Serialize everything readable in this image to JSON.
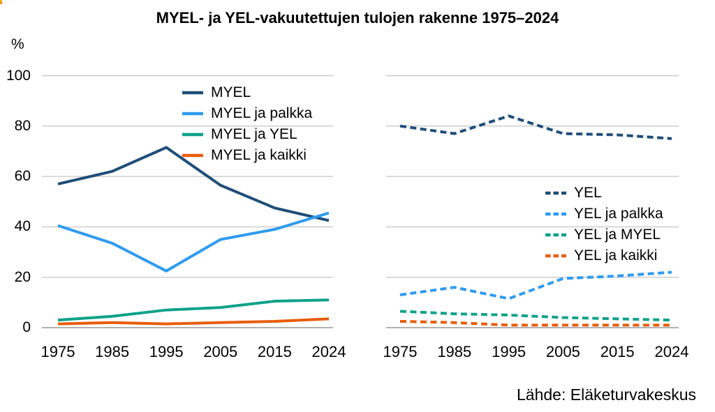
{
  "title": "MYEL- ja YEL-vakuutettujen tulojen rakenne 1975–2024",
  "source": "Lähde: Eläketurvakeskus",
  "y_axis": {
    "unit_label": "%",
    "ticks": [
      100,
      80,
      60,
      40,
      20,
      0
    ],
    "min": 0,
    "max": 100,
    "grid": true
  },
  "colors": {
    "navy": "#1f4e79",
    "blue": "#2e9bf0",
    "teal": "#0da189",
    "orange": "#e85d0c",
    "gridline": "#c9c9c9",
    "axis": "#a6a6a6",
    "text": "#000000",
    "background": "#ffffff"
  },
  "chart_data": [
    {
      "type": "line",
      "panel": "left",
      "line_style": "solid",
      "categories": [
        1975,
        1985,
        1995,
        2005,
        2015,
        2024
      ],
      "series": [
        {
          "name": "MYEL",
          "color": "#1f4e79",
          "values": [
            57,
            62,
            71.5,
            56.5,
            47.5,
            42.5
          ]
        },
        {
          "name": "MYEL ja palkka",
          "color": "#2e9bf0",
          "values": [
            40.5,
            33.5,
            22.5,
            35,
            39,
            45.5
          ]
        },
        {
          "name": "MYEL ja YEL",
          "color": "#0da189",
          "values": [
            3,
            4.5,
            7,
            8,
            10.5,
            11
          ]
        },
        {
          "name": "MYEL ja kaikki",
          "color": "#e85d0c",
          "values": [
            1.5,
            2,
            1.5,
            2,
            2.5,
            3.5
          ]
        }
      ],
      "ylim": [
        0,
        100
      ],
      "legend_position": "upper-left-inside"
    },
    {
      "type": "line",
      "panel": "right",
      "line_style": "dashed",
      "categories": [
        1975,
        1985,
        1995,
        2005,
        2015,
        2024
      ],
      "series": [
        {
          "name": "YEL",
          "color": "#1f4e79",
          "values": [
            80,
            77,
            84,
            77,
            76.5,
            75
          ]
        },
        {
          "name": "YEL ja palkka",
          "color": "#2e9bf0",
          "values": [
            13,
            16,
            11.5,
            19.5,
            20.5,
            22
          ]
        },
        {
          "name": "YEL ja MYEL",
          "color": "#0da189",
          "values": [
            6.5,
            5.5,
            5,
            4,
            3.5,
            3
          ]
        },
        {
          "name": "YEL ja kaikki",
          "color": "#e85d0c",
          "values": [
            2.5,
            2,
            1,
            1,
            1,
            1
          ]
        }
      ],
      "ylim": [
        0,
        100
      ],
      "legend_position": "middle-right-inside"
    }
  ]
}
